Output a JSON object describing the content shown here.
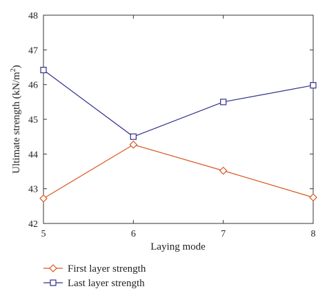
{
  "chart_data": {
    "type": "line",
    "xlabel": "Laying mode",
    "ylabel": "Ultimate strength (kN/m",
    "ylabel_sup": "2",
    "ylabel_close": ")",
    "x": [
      5,
      6,
      7,
      8
    ],
    "x_ticks": [
      "5",
      "6",
      "7",
      "8"
    ],
    "y_ticks": [
      "42",
      "43",
      "44",
      "45",
      "46",
      "47",
      "48"
    ],
    "xlim": [
      5,
      8
    ],
    "ylim": [
      42,
      48
    ],
    "grid": false,
    "legend_position": "bottom-left",
    "series": [
      {
        "name": "First layer strength",
        "values": [
          42.72,
          44.27,
          43.52,
          42.75
        ],
        "color": "#d9541e",
        "marker": "diamond"
      },
      {
        "name": "Last layer strength",
        "values": [
          46.42,
          44.5,
          45.5,
          45.98
        ],
        "color": "#2e2e8c",
        "marker": "square"
      }
    ]
  }
}
